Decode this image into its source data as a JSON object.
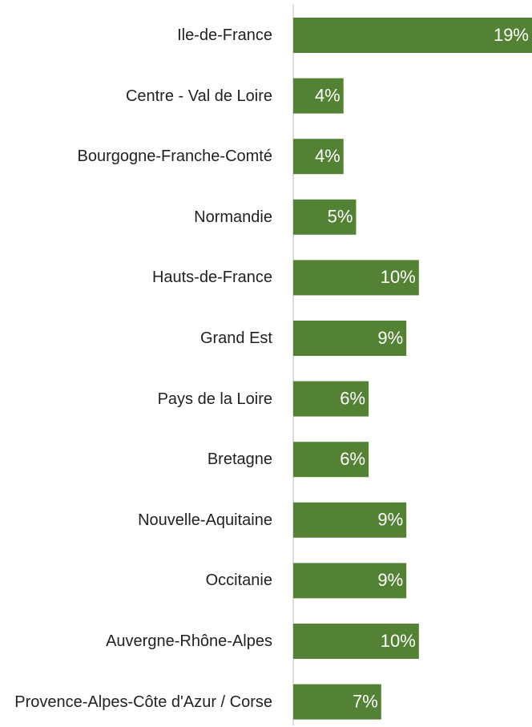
{
  "chart_data": {
    "type": "bar",
    "orientation": "horizontal",
    "categories": [
      "Ile-de-France",
      "Centre - Val de Loire",
      "Bourgogne-Franche-Comté",
      "Normandie",
      "Hauts-de-France",
      "Grand Est",
      "Pays de la Loire",
      "Bretagne",
      "Nouvelle-Aquitaine",
      "Occitanie",
      "Auvergne-Rhône-Alpes",
      "Provence-Alpes-Côte d'Azur / Corse"
    ],
    "values": [
      19,
      4,
      4,
      5,
      10,
      9,
      6,
      6,
      9,
      9,
      10,
      7
    ],
    "value_labels": [
      "19%",
      "4%",
      "4%",
      "5%",
      "10%",
      "9%",
      "6%",
      "6%",
      "9%",
      "9%",
      "10%",
      "7%"
    ],
    "color": "#548235",
    "xlim": [
      0,
      19
    ]
  }
}
